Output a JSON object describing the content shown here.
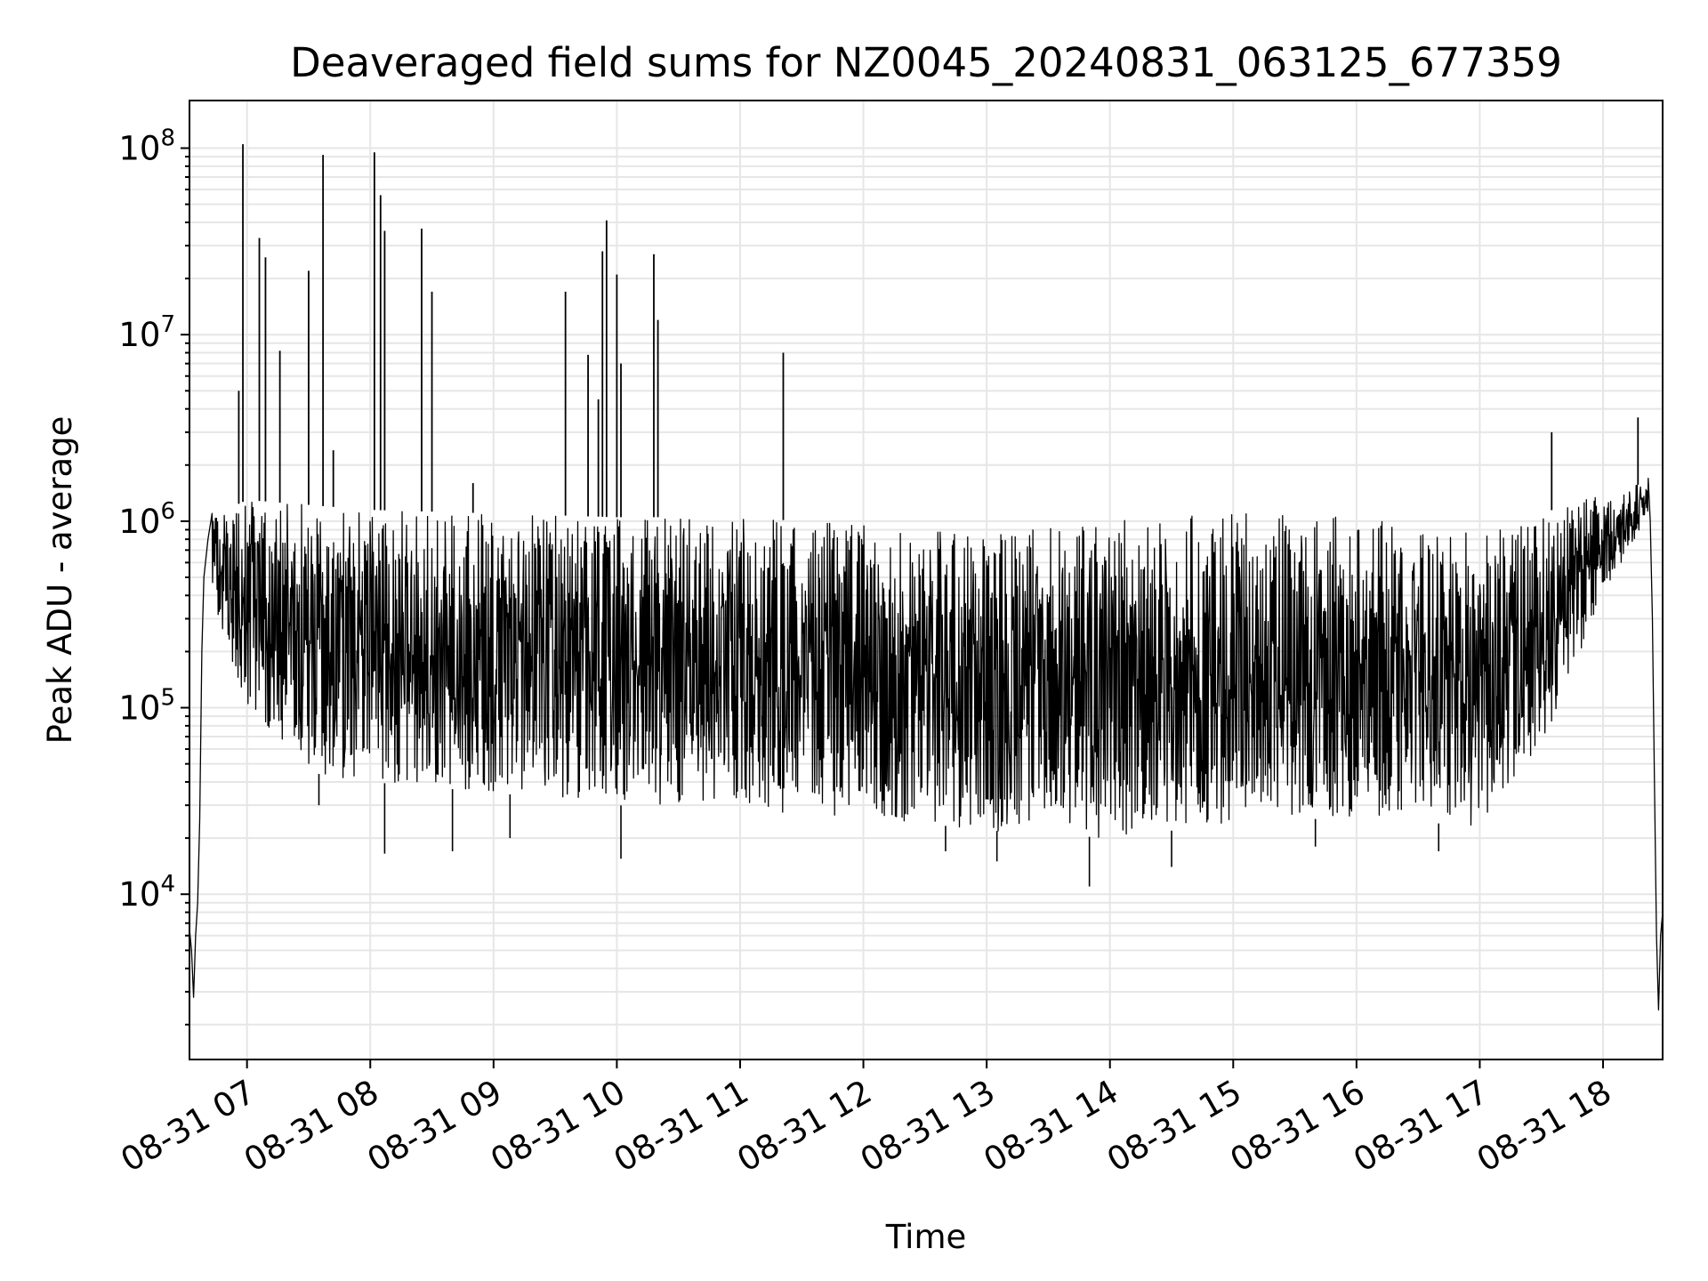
{
  "chart_data": {
    "type": "line",
    "title": "Deaveraged field sums for NZ0045_20240831_063125_677359",
    "xlabel": "Time",
    "ylabel": "Peak ADU - average",
    "yscale": "log",
    "ylim": [
      1300,
      180000000
    ],
    "xlim": [
      "2024-08-31 06:32",
      "2024-08-31 18:29"
    ],
    "grid": true,
    "colors": {
      "line": "#000000",
      "grid": "#e6e6e6",
      "background": "#ffffff"
    },
    "y_ticks": [
      {
        "base": "10",
        "exp": "4",
        "value": 10000
      },
      {
        "base": "10",
        "exp": "5",
        "value": 100000
      },
      {
        "base": "10",
        "exp": "6",
        "value": 1000000
      },
      {
        "base": "10",
        "exp": "7",
        "value": 10000000
      },
      {
        "base": "10",
        "exp": "8",
        "value": 100000000
      }
    ],
    "x_ticks": [
      {
        "label": "08-31 07",
        "value": "2024-08-31 07:00"
      },
      {
        "label": "08-31 08",
        "value": "2024-08-31 08:00"
      },
      {
        "label": "08-31 09",
        "value": "2024-08-31 09:00"
      },
      {
        "label": "08-31 10",
        "value": "2024-08-31 10:00"
      },
      {
        "label": "08-31 11",
        "value": "2024-08-31 11:00"
      },
      {
        "label": "08-31 12",
        "value": "2024-08-31 12:00"
      },
      {
        "label": "08-31 13",
        "value": "2024-08-31 13:00"
      },
      {
        "label": "08-31 14",
        "value": "2024-08-31 14:00"
      },
      {
        "label": "08-31 15",
        "value": "2024-08-31 15:00"
      },
      {
        "label": "08-31 16",
        "value": "2024-08-31 16:00"
      },
      {
        "label": "08-31 17",
        "value": "2024-08-31 17:00"
      },
      {
        "label": "08-31 18",
        "value": "2024-08-31 18:00"
      }
    ],
    "series": [
      {
        "envelope_top": [
          [
            "2024-08-31 06:38",
            1000000
          ],
          [
            "2024-08-31 07:00",
            1300000
          ],
          [
            "2024-08-31 08:00",
            1150000
          ],
          [
            "2024-08-31 09:00",
            1100000
          ],
          [
            "2024-08-31 10:00",
            1050000
          ],
          [
            "2024-08-31 11:00",
            1050000
          ],
          [
            "2024-08-31 12:00",
            950000
          ],
          [
            "2024-08-31 13:00",
            850000
          ],
          [
            "2024-08-31 14:00",
            1000000
          ],
          [
            "2024-08-31 15:00",
            1100000
          ],
          [
            "2024-08-31 16:00",
            1050000
          ],
          [
            "2024-08-31 17:00",
            850000
          ],
          [
            "2024-08-31 17:30",
            1100000
          ],
          [
            "2024-08-31 18:00",
            1400000
          ],
          [
            "2024-08-31 18:20",
            1600000
          ]
        ],
        "envelope_bottom": [
          [
            "2024-08-31 06:40",
            500000
          ],
          [
            "2024-08-31 07:00",
            100000
          ],
          [
            "2024-08-31 07:30",
            45000
          ],
          [
            "2024-08-31 08:00",
            40000
          ],
          [
            "2024-08-31 09:00",
            35000
          ],
          [
            "2024-08-31 10:00",
            30000
          ],
          [
            "2024-08-31 11:00",
            28000
          ],
          [
            "2024-08-31 12:00",
            26000
          ],
          [
            "2024-08-31 13:00",
            22000
          ],
          [
            "2024-08-31 14:00",
            20000
          ],
          [
            "2024-08-31 15:00",
            24000
          ],
          [
            "2024-08-31 16:00",
            26000
          ],
          [
            "2024-08-31 17:00",
            23000
          ],
          [
            "2024-08-31 17:30",
            60000
          ],
          [
            "2024-08-31 18:00",
            400000
          ],
          [
            "2024-08-31 18:20",
            1000000
          ]
        ],
        "ramp_up": [
          [
            "2024-08-31 06:32",
            6500
          ],
          [
            "2024-08-31 06:33",
            5000
          ],
          [
            "2024-08-31 06:34",
            2800
          ],
          [
            "2024-08-31 06:35",
            6000
          ],
          [
            "2024-08-31 06:36",
            9000
          ],
          [
            "2024-08-31 06:37",
            25000
          ],
          [
            "2024-08-31 06:38",
            200000
          ],
          [
            "2024-08-31 06:39",
            500000
          ],
          [
            "2024-08-31 06:41",
            800000
          ],
          [
            "2024-08-31 06:43",
            1100000
          ]
        ],
        "ramp_down": [
          [
            "2024-08-31 18:22",
            1700000
          ],
          [
            "2024-08-31 18:23",
            1000000
          ],
          [
            "2024-08-31 18:24",
            300000
          ],
          [
            "2024-08-31 18:25",
            40000
          ],
          [
            "2024-08-31 18:26",
            6000
          ],
          [
            "2024-08-31 18:27",
            2400
          ],
          [
            "2024-08-31 18:28",
            6000
          ],
          [
            "2024-08-31 18:29",
            8000
          ]
        ],
        "spikes": [
          [
            "2024-08-31 06:56",
            5000000
          ],
          [
            "2024-08-31 06:58",
            105000000
          ],
          [
            "2024-08-31 07:06",
            33000000
          ],
          [
            "2024-08-31 07:09",
            26000000
          ],
          [
            "2024-08-31 07:16",
            8200000
          ],
          [
            "2024-08-31 07:30",
            22000000
          ],
          [
            "2024-08-31 07:37",
            92000000
          ],
          [
            "2024-08-31 07:42",
            2400000
          ],
          [
            "2024-08-31 08:02",
            95000000
          ],
          [
            "2024-08-31 08:05",
            56000000
          ],
          [
            "2024-08-31 08:07",
            36000000
          ],
          [
            "2024-08-31 08:25",
            37000000
          ],
          [
            "2024-08-31 08:30",
            17000000
          ],
          [
            "2024-08-31 08:50",
            1600000
          ],
          [
            "2024-08-31 09:35",
            17000000
          ],
          [
            "2024-08-31 09:46",
            7800000
          ],
          [
            "2024-08-31 09:51",
            4500000
          ],
          [
            "2024-08-31 09:53",
            28000000
          ],
          [
            "2024-08-31 09:55",
            41000000
          ],
          [
            "2024-08-31 10:00",
            21000000
          ],
          [
            "2024-08-31 10:02",
            7000000
          ],
          [
            "2024-08-31 10:18",
            27000000
          ],
          [
            "2024-08-31 10:20",
            12000000
          ],
          [
            "2024-08-31 11:21",
            8000000
          ],
          [
            "2024-08-31 17:35",
            3000000
          ],
          [
            "2024-08-31 18:17",
            3600000
          ]
        ],
        "dips": [
          [
            "2024-08-31 07:35",
            30000
          ],
          [
            "2024-08-31 08:07",
            16500
          ],
          [
            "2024-08-31 08:40",
            17000
          ],
          [
            "2024-08-31 09:08",
            20000
          ],
          [
            "2024-08-31 10:02",
            15500
          ],
          [
            "2024-08-31 12:40",
            17000
          ],
          [
            "2024-08-31 13:05",
            15000
          ],
          [
            "2024-08-31 13:50",
            11000
          ],
          [
            "2024-08-31 14:30",
            14000
          ],
          [
            "2024-08-31 15:40",
            18000
          ],
          [
            "2024-08-31 16:40",
            17000
          ]
        ]
      }
    ]
  }
}
